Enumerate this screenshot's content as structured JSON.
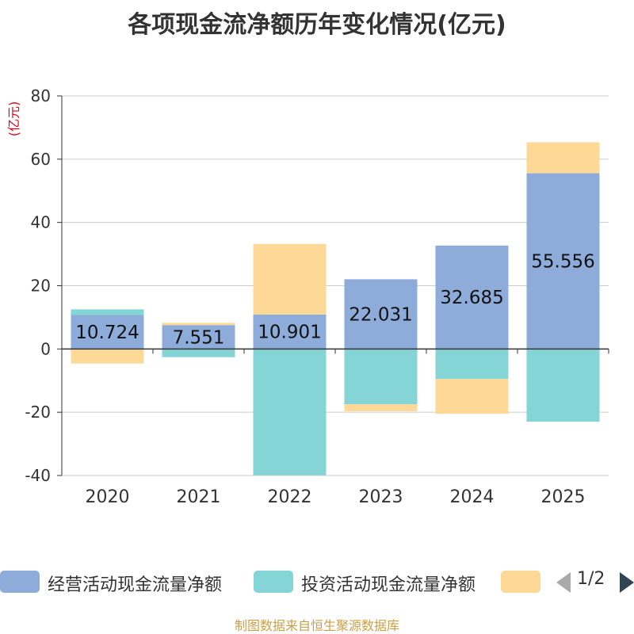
{
  "colors": {
    "operating": "#8eacda",
    "investing": "#86d5d6",
    "financing": "#fed896",
    "axis": "#333333",
    "grid": "#cccccc",
    "unit": "#e60012",
    "source": "#c8a04a"
  },
  "chart_data": {
    "type": "bar",
    "stacked": true,
    "title": "各项现金流净额历年变化情况(亿元)",
    "ylabel": "(亿元)",
    "ylim": [
      -40,
      80
    ],
    "yticks": [
      80,
      60,
      40,
      20,
      0,
      -20,
      -40
    ],
    "categories": [
      "2020",
      "2021",
      "2022",
      "2023",
      "2024",
      "2025"
    ],
    "grid": true,
    "series": [
      {
        "name": "经营活动现金流量净额",
        "color_key": "operating",
        "values": [
          10.724,
          7.551,
          10.901,
          22.031,
          32.685,
          55.556
        ],
        "labels": [
          "10.724",
          "7.551",
          "10.901",
          "22.031",
          "32.685",
          "55.556"
        ]
      },
      {
        "name": "投资活动现金流量净额",
        "color_key": "investing",
        "values": [
          1.8,
          -2.6,
          -40.0,
          -17.5,
          -9.5,
          -23.0
        ]
      },
      {
        "name": "",
        "color_key": "financing",
        "values": [
          -4.6,
          0.7,
          22.3,
          -2.2,
          -11.0,
          9.8
        ]
      }
    ]
  },
  "legend": {
    "items": [
      {
        "label": "经营活动现金流量净额",
        "color_key": "operating"
      },
      {
        "label": "投资活动现金流量净额",
        "color_key": "investing"
      },
      {
        "label": "",
        "color_key": "financing"
      }
    ],
    "page": "1/2"
  },
  "source": "制图数据来自恒生聚源数据库"
}
